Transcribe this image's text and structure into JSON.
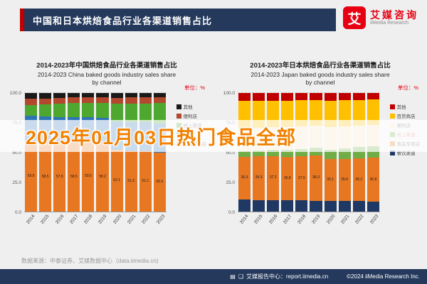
{
  "header": {
    "title": "中国和日本烘焙食品行业各渠道销售占比"
  },
  "logo": {
    "icon_char": "艾",
    "cn": "艾媒咨询",
    "en": "iiMedia Research",
    "brand_color": "#e60012"
  },
  "watermark": {
    "text": "2025年01月03日热门食品全部",
    "color": "#f18101"
  },
  "chart_data": [
    {
      "type": "bar",
      "subtype": "stacked-100",
      "title_cn": "2014-2023年中国烘焙食品行业各渠道销售占比",
      "title_en": "2014-2023 China baked goods industry sales share",
      "title_en2": "by channel",
      "unit": "单位：%",
      "categories": [
        "2014",
        "2015",
        "2016",
        "2017",
        "2018",
        "2019",
        "2020",
        "2021",
        "2022",
        "2023"
      ],
      "yticks": [
        "100.0",
        "75.0",
        "50.0",
        "25.0",
        "0.0"
      ],
      "ylim": [
        0,
        100
      ],
      "grid": true,
      "legend_position": "right",
      "series": [
        {
          "name": "食品专卖店",
          "color": "#e87722",
          "show_labels": true,
          "values": [
            59.5,
            58.5,
            57.9,
            58.5,
            59.5,
            58.2,
            52.1,
            51.3,
            51.1,
            50.0
          ]
        },
        {
          "name": "超市",
          "color": "#2e75b6",
          "show_labels": false,
          "values": [
            21.5,
            21.8,
            22.0,
            21.5,
            20.5,
            20.8,
            24.0,
            24.2,
            24.3,
            24.5
          ]
        },
        {
          "name": "线上渠道",
          "color": "#4ea72e",
          "show_labels": false,
          "values": [
            9.0,
            10.0,
            11.0,
            11.5,
            12.0,
            13.0,
            15.0,
            15.5,
            16.0,
            17.0
          ]
        },
        {
          "name": "便利店",
          "color": "#b2492e",
          "show_labels": false,
          "values": [
            5.5,
            5.2,
            5.0,
            5.0,
            4.5,
            4.5,
            5.0,
            5.5,
            5.3,
            5.2
          ]
        },
        {
          "name": "其他",
          "color": "#1a1a1a",
          "show_labels": false,
          "values": [
            4.5,
            4.5,
            4.1,
            3.5,
            3.5,
            3.5,
            3.9,
            3.5,
            3.3,
            3.3
          ]
        }
      ]
    },
    {
      "type": "bar",
      "subtype": "stacked-100",
      "title_cn": "2014-2023年日本烘焙食品行业各渠道销售占比",
      "title_en": "2014-2023 Japan baked goods industry sales share",
      "title_en2": "by channel",
      "unit": "单位：%",
      "categories": [
        "2014",
        "2015",
        "2016",
        "2017",
        "2018",
        "2019",
        "2020",
        "2021",
        "2022",
        "2023"
      ],
      "yticks": [
        "100.0",
        "75.0",
        "50.0",
        "25.0",
        "0.0"
      ],
      "ylim": [
        0,
        100
      ],
      "grid": true,
      "legend_position": "right",
      "series": [
        {
          "name": "餐饮渠道",
          "color": "#1f3864",
          "show_labels": false,
          "values": [
            10.2,
            10.0,
            9.8,
            9.7,
            9.5,
            9.4,
            9.2,
            9.0,
            8.9,
            8.7
          ]
        },
        {
          "name": "食品专卖店",
          "color": "#e87722",
          "show_labels": true,
          "values": [
            36.3,
            36.9,
            37.2,
            36.8,
            37.5,
            38.3,
            35.1,
            35.6,
            36.2,
            36.8
          ]
        },
        {
          "name": "线上渠道",
          "color": "#70ad47",
          "show_labels": false,
          "label_color": "#e06666",
          "values": [
            4.5,
            4.8,
            5.2,
            5.6,
            6.0,
            6.5,
            8.2,
            8.8,
            9.3,
            9.9
          ]
        },
        {
          "name": "便利店",
          "color": "#f2e3c1",
          "show_labels": false,
          "values": [
            19.5,
            19.2,
            19.0,
            19.1,
            18.8,
            18.4,
            18.9,
            18.6,
            18.2,
            17.9
          ]
        },
        {
          "name": "百货商店",
          "color": "#ffc000",
          "show_labels": false,
          "values": [
            23.0,
            22.8,
            22.5,
            22.6,
            22.2,
            21.6,
            22.4,
            22.0,
            21.6,
            21.2
          ]
        },
        {
          "name": "其他",
          "color": "#c00000",
          "show_labels": false,
          "values": [
            6.5,
            6.3,
            6.3,
            6.2,
            6.0,
            5.8,
            6.2,
            6.0,
            5.8,
            5.5
          ]
        }
      ]
    }
  ],
  "footer": {
    "source": "数据来源：中泰证券、艾媒数据中心（data.iimedia.cn)",
    "report_center": "艾媒报告中心：report.iimedia.cn",
    "copyright": "©2024 iiMedia Research Inc."
  }
}
